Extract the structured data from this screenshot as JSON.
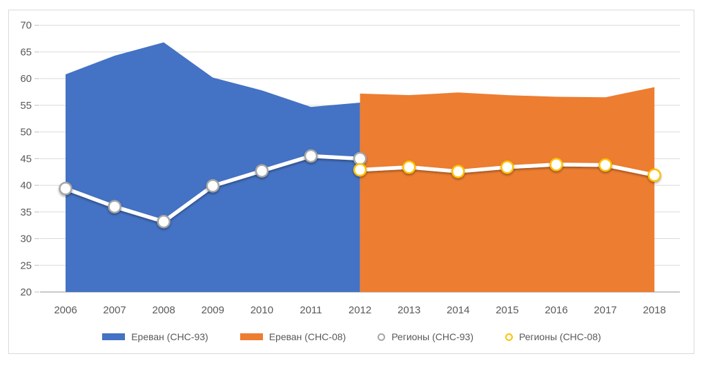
{
  "chart": {
    "text_color": "#595959",
    "grid_color": "#d9d9d9",
    "axis_line_color": "#c9c9c9",
    "border_color": "#d9d9d9",
    "background": "#ffffff",
    "line_color": "#ffffff"
  },
  "chart_data": {
    "type": "area",
    "title": "",
    "xlabel": "",
    "ylabel": "",
    "categories": [
      2006,
      2007,
      2008,
      2009,
      2010,
      2011,
      2012,
      2013,
      2014,
      2015,
      2016,
      2017,
      2018
    ],
    "ylim": [
      20,
      70
    ],
    "ytick_step": 5,
    "grid": true,
    "legend_position": "bottom",
    "series": [
      {
        "name": "Ереван (СНС-93)",
        "slug": "yerevan-sns-93",
        "type": "area",
        "color": "#4472C4",
        "x": [
          2006,
          2007,
          2008,
          2009,
          2010,
          2011,
          2012
        ],
        "values": [
          60.8,
          64.3,
          66.8,
          60.2,
          57.8,
          54.7,
          55.5
        ]
      },
      {
        "name": "Ереван (СНС-08)",
        "slug": "yerevan-sns-08",
        "type": "area",
        "color": "#ED7D31",
        "x": [
          2012,
          2013,
          2014,
          2015,
          2016,
          2017,
          2018
        ],
        "values": [
          57.2,
          56.9,
          57.4,
          56.9,
          56.6,
          56.5,
          58.4
        ]
      },
      {
        "name": "Регионы (СНС-93)",
        "slug": "regiony-sns-93",
        "type": "line",
        "color": "#ffffff",
        "marker_stroke": "#A6A6A6",
        "x": [
          2006,
          2007,
          2008,
          2009,
          2010,
          2011,
          2012
        ],
        "values": [
          39.4,
          36.0,
          33.2,
          39.9,
          42.7,
          45.5,
          45.0
        ]
      },
      {
        "name": "Регионы (СНС-08)",
        "slug": "regiony-sns-08",
        "type": "line",
        "color": "#ffffff",
        "marker_stroke": "#FFC000",
        "x": [
          2012,
          2013,
          2014,
          2015,
          2016,
          2017,
          2018
        ],
        "values": [
          42.9,
          43.4,
          42.6,
          43.4,
          43.9,
          43.8,
          41.9
        ]
      }
    ]
  }
}
